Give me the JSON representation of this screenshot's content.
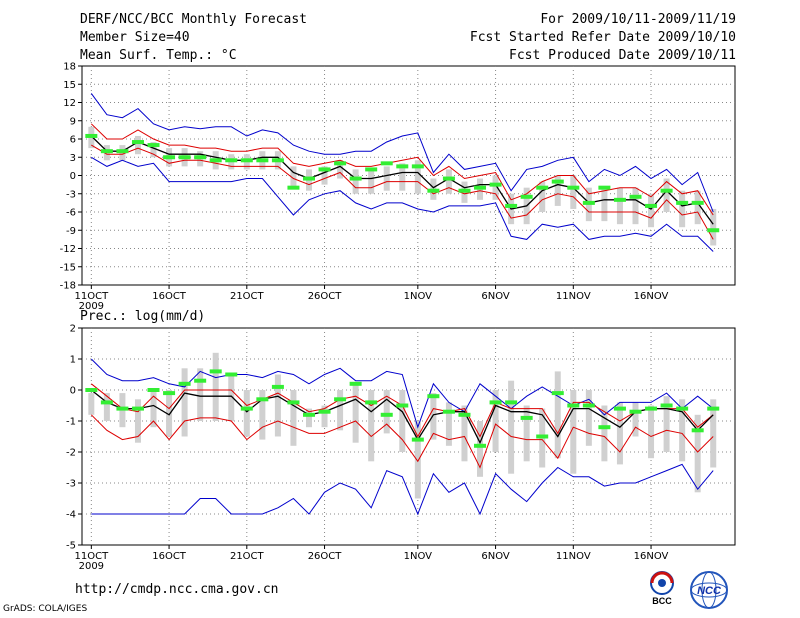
{
  "header": {
    "title": "DERF/NCC/BCC Monthly Forecast",
    "member_size": "Member Size=40",
    "variable_temp": "Mean Surf. Temp.: °C",
    "period": "For 2009/10/11-2009/11/19",
    "started": "Fcst Started Refer Date 2009/10/10",
    "produced": "Fcst Produced Date 2009/10/11"
  },
  "footer": {
    "url": "http://cmdp.ncc.cma.gov.cn",
    "grads": "GrADS: COLA/IGES"
  },
  "logos": {
    "bcc": "BCC",
    "ncc": "NCC"
  },
  "colors": {
    "ensemble_mean": "#000000",
    "spread": "#dd0000",
    "extreme": "#0000cc",
    "observed": "#33ee33",
    "box": "#d0d0d0",
    "grid": "#888888"
  },
  "chart_data": [
    {
      "type": "line",
      "title": "Mean Surf. Temp.: °C",
      "ylim": [
        -18,
        18
      ],
      "yticks": [
        -18,
        -15,
        -12,
        -9,
        -6,
        -3,
        0,
        3,
        6,
        9,
        12,
        15,
        18
      ],
      "xticks": [
        {
          "day": 0,
          "label": "11OCT"
        },
        {
          "day": 5,
          "label": "16OCT"
        },
        {
          "day": 10,
          "label": "21OCT"
        },
        {
          "day": 15,
          "label": "26OCT"
        },
        {
          "day": 21,
          "label": "1NOV"
        },
        {
          "day": 26,
          "label": "6NOV"
        },
        {
          "day": 31,
          "label": "11NOV"
        },
        {
          "day": 36,
          "label": "16NOV"
        }
      ],
      "year_label": "2009",
      "series": [
        {
          "name": "max",
          "color": "#0000cc",
          "values": [
            13.5,
            10,
            9.5,
            11,
            8.5,
            7.5,
            8,
            7.7,
            8,
            8,
            6.5,
            7.5,
            7,
            5,
            4,
            3.5,
            3.5,
            4,
            4,
            5.5,
            6.5,
            7,
            0.5,
            3.5,
            1,
            1.5,
            2,
            -2.5,
            1,
            1.5,
            2.5,
            3,
            -1,
            1,
            0,
            1.5,
            -0.5,
            1,
            -1.5,
            0.5,
            -6
          ]
        },
        {
          "name": "upper",
          "color": "#dd0000",
          "values": [
            8.5,
            6,
            6,
            7.5,
            6,
            5,
            5,
            4.5,
            4.5,
            4,
            4,
            4.5,
            4.5,
            2,
            1.5,
            2,
            2.5,
            1.5,
            1.5,
            2,
            2.5,
            3,
            0,
            1.5,
            -0.5,
            0,
            0.5,
            -4,
            -3,
            -1,
            0,
            0,
            -3,
            -2.5,
            -2,
            -2,
            -3.5,
            -1,
            -3,
            -2.5,
            -6.5
          ]
        },
        {
          "name": "mean",
          "color": "#000000",
          "values": [
            6.5,
            4,
            4,
            5.5,
            4.5,
            3.5,
            3.5,
            3.5,
            3,
            2.5,
            2.5,
            3,
            3,
            0.5,
            -0.5,
            0.5,
            1.5,
            -0.5,
            -0.5,
            0,
            0.5,
            0.5,
            -2,
            -0.5,
            -2,
            -1.5,
            -1.5,
            -5.5,
            -5,
            -2.5,
            -1.5,
            -2,
            -4.5,
            -4,
            -4,
            -4,
            -5.5,
            -2.5,
            -5,
            -4.5,
            -8
          ]
        },
        {
          "name": "lower",
          "color": "#dd0000",
          "values": [
            5,
            3.5,
            3.5,
            4.5,
            3.5,
            2,
            2.5,
            2.5,
            2,
            1.5,
            1.5,
            1.5,
            1.5,
            -0.5,
            -1.5,
            -0.5,
            0.5,
            -2,
            -2,
            -1,
            -1,
            -1,
            -3,
            -2,
            -3,
            -2.5,
            -3,
            -7,
            -6.5,
            -4,
            -3,
            -3.5,
            -6,
            -6,
            -6,
            -6,
            -7,
            -4,
            -6.5,
            -6,
            -10.5
          ]
        },
        {
          "name": "min",
          "color": "#0000cc",
          "values": [
            3,
            1.5,
            2.5,
            1.5,
            2,
            -1,
            -1,
            -1,
            -1,
            -1,
            -0.5,
            -0.5,
            -3.5,
            -6.5,
            -4,
            -3,
            -2.5,
            -4.5,
            -5.5,
            -4.5,
            -4.5,
            -5.5,
            -6,
            -5,
            -5,
            -5,
            -4.5,
            -10,
            -10.5,
            -8,
            -8.5,
            -8,
            -10.5,
            -10,
            -10,
            -9.5,
            -10,
            -8,
            -10,
            -10,
            -12.5
          ]
        },
        {
          "name": "observed",
          "color": "#33ee33",
          "values": [
            6.5,
            4,
            4,
            5.5,
            5,
            3,
            3,
            3,
            2.5,
            2.5,
            2.5,
            2.5,
            2.5,
            -2,
            -0.5,
            1,
            2,
            -0.5,
            1,
            2,
            1.5,
            1.5,
            -2.5,
            -0.5,
            -2.5,
            -2,
            -1.5,
            -5,
            -3.5,
            -2,
            -1,
            -2,
            -4.5,
            -2,
            -4,
            -3.5,
            -5,
            -2.5,
            -4.5,
            -4.5,
            -9
          ]
        },
        {
          "name": "box_top",
          "color": "#d0d0d0",
          "values": [
            8,
            5,
            5,
            6.5,
            5.5,
            4.5,
            4.5,
            4,
            4,
            3.5,
            3.5,
            4,
            4,
            1.5,
            1,
            1.5,
            2.5,
            1,
            1,
            1.5,
            2,
            2.5,
            -0.5,
            1,
            -1,
            -0.5,
            0,
            -3,
            -2,
            -1,
            0,
            0,
            -2,
            -2,
            -2,
            -2,
            -3,
            -0.5,
            -2.5,
            -2.5,
            -5.5
          ]
        },
        {
          "name": "box_bottom",
          "color": "#d0d0d0",
          "values": [
            4.5,
            2.5,
            2.5,
            3.5,
            3,
            1.5,
            1.5,
            1.5,
            1,
            1,
            1,
            1,
            1,
            -2,
            -2.5,
            -1.5,
            -0.5,
            -3,
            -3,
            -2.5,
            -2.5,
            -3,
            -4,
            -3,
            -4.5,
            -4,
            -4,
            -8,
            -8,
            -6,
            -5,
            -5.5,
            -7.5,
            -7.5,
            -8,
            -8,
            -8.5,
            -6,
            -8.5,
            -8,
            -11.5
          ]
        }
      ]
    },
    {
      "type": "line",
      "title": "Prec.: log(mm/d)",
      "ylim": [
        -5,
        2
      ],
      "yticks": [
        -5,
        -4,
        -3,
        -2,
        -1,
        0,
        1,
        2
      ],
      "xticks": [
        {
          "day": 0,
          "label": "11OCT"
        },
        {
          "day": 5,
          "label": "16OCT"
        },
        {
          "day": 10,
          "label": "21OCT"
        },
        {
          "day": 15,
          "label": "26OCT"
        },
        {
          "day": 21,
          "label": "1NOV"
        },
        {
          "day": 26,
          "label": "6NOV"
        },
        {
          "day": 31,
          "label": "11NOV"
        },
        {
          "day": 36,
          "label": "16NOV"
        }
      ],
      "year_label": "2009",
      "series": [
        {
          "name": "max",
          "color": "#0000cc",
          "values": [
            1,
            0.5,
            0.3,
            0.3,
            0.4,
            0.2,
            0.1,
            0.6,
            0.4,
            0.5,
            0.5,
            0.4,
            0.6,
            0.5,
            0.2,
            0.5,
            0.7,
            0.3,
            0.3,
            0.6,
            0.5,
            -1.2,
            0.2,
            -0.4,
            -0.7,
            0.2,
            -0.2,
            -0.6,
            -0.2,
            0.1,
            -0.2,
            -0.5,
            -0.3,
            -0.8,
            -0.4,
            -0.4,
            -0.4,
            -0.1,
            -0.6,
            -0.2,
            -0.6
          ]
        },
        {
          "name": "upper",
          "color": "#dd0000",
          "values": [
            0.2,
            -0.2,
            -0.6,
            -0.7,
            -0.2,
            -0.6,
            0,
            0,
            0,
            0,
            -0.5,
            -0.3,
            -0.1,
            -0.4,
            -0.7,
            -0.6,
            -0.3,
            -0.2,
            -0.5,
            -0.2,
            -0.5,
            -1.5,
            -0.6,
            -0.7,
            -0.6,
            -1.5,
            -0.4,
            -0.6,
            -0.6,
            -0.6,
            -1.4,
            -0.4,
            -0.4,
            -0.7,
            -1,
            -0.7,
            -0.6,
            -0.6,
            -0.6,
            -1.2,
            -0.8
          ]
        },
        {
          "name": "mean",
          "color": "#000000",
          "values": [
            0,
            -0.4,
            -0.6,
            -0.6,
            -0.5,
            -0.8,
            -0.1,
            -0.2,
            -0.2,
            -0.2,
            -0.7,
            -0.3,
            -0.2,
            -0.5,
            -0.8,
            -0.7,
            -0.5,
            -0.3,
            -0.7,
            -0.3,
            -0.7,
            -1.6,
            -0.8,
            -0.7,
            -0.7,
            -1.7,
            -0.5,
            -0.7,
            -0.7,
            -0.8,
            -1.5,
            -0.6,
            -0.6,
            -0.9,
            -1.2,
            -0.7,
            -0.6,
            -0.6,
            -0.7,
            -1.3,
            -0.8
          ]
        },
        {
          "name": "lower",
          "color": "#dd0000",
          "values": [
            -0.8,
            -1.3,
            -1.6,
            -1.5,
            -1,
            -1.6,
            -1,
            -0.9,
            -0.9,
            -1,
            -1.6,
            -1.2,
            -1,
            -1.2,
            -1.4,
            -1.4,
            -1.2,
            -1,
            -1.5,
            -1.1,
            -1.6,
            -2.3,
            -1.4,
            -1.6,
            -1.5,
            -2.5,
            -1.1,
            -1.5,
            -1.6,
            -1.6,
            -2.2,
            -1.2,
            -1.4,
            -1.5,
            -2,
            -1.2,
            -1.5,
            -1.3,
            -1.4,
            -2,
            -1.5
          ]
        },
        {
          "name": "min",
          "color": "#0000cc",
          "values": [
            -4,
            -4,
            -4,
            -4,
            -4,
            -4,
            -4,
            -3.5,
            -3.5,
            -4,
            -4,
            -4,
            -3.8,
            -3.5,
            -4,
            -3.3,
            -3,
            -3.2,
            -3.8,
            -2.6,
            -2.8,
            -4,
            -2.7,
            -3.3,
            -3,
            -4,
            -2.7,
            -3.2,
            -3.6,
            -3,
            -2.5,
            -2.8,
            -2.8,
            -3.1,
            -3,
            -3,
            -2.8,
            -2.6,
            -2.4,
            -3.2,
            -2.6
          ]
        },
        {
          "name": "observed",
          "color": "#33ee33",
          "values": [
            0,
            -0.4,
            -0.6,
            -0.6,
            0,
            -0.1,
            0.2,
            0.3,
            0.6,
            0.5,
            -0.6,
            -0.3,
            0.1,
            -0.4,
            -0.8,
            -0.7,
            -0.3,
            0.2,
            -0.4,
            -0.8,
            -0.5,
            -1.6,
            -0.2,
            -0.7,
            -0.8,
            -1.8,
            -0.4,
            -0.4,
            -0.9,
            -1.5,
            -0.1,
            -0.5,
            -0.5,
            -1.2,
            -0.6,
            -0.7,
            -0.6,
            -0.5,
            -0.6,
            -1.3,
            -0.6
          ]
        },
        {
          "name": "box_top",
          "color": "#d0d0d0",
          "values": [
            -0.1,
            -0.1,
            -0.1,
            -0.3,
            0,
            0,
            0.7,
            0.7,
            1.2,
            0.5,
            0,
            0,
            0.5,
            0,
            -0.6,
            -0.5,
            0,
            0.2,
            0,
            0,
            0,
            -1,
            -0.1,
            -0.4,
            -0.5,
            -1,
            0,
            0.3,
            -0.5,
            -0.6,
            0.6,
            0,
            0,
            -0.5,
            -0.4,
            -0.4,
            -0.5,
            -0.2,
            -0.3,
            -0.8,
            -0.3
          ]
        },
        {
          "name": "box_bottom",
          "color": "#d0d0d0",
          "values": [
            -0.8,
            -1,
            -1.2,
            -1.7,
            -1.2,
            -1.5,
            -1.5,
            -1,
            -1,
            -1,
            -1.5,
            -1.6,
            -1.5,
            -1.8,
            -1.2,
            -1.2,
            -1.3,
            -1.7,
            -2.3,
            -1.4,
            -2,
            -3.5,
            -1.6,
            -1.8,
            -2.3,
            -2.8,
            -2,
            -2.7,
            -2.3,
            -2.5,
            -2.2,
            -2.7,
            -1.8,
            -2.3,
            -2.4,
            -1.5,
            -2.2,
            -2,
            -2.3,
            -3.3,
            -2.5
          ]
        }
      ]
    }
  ]
}
